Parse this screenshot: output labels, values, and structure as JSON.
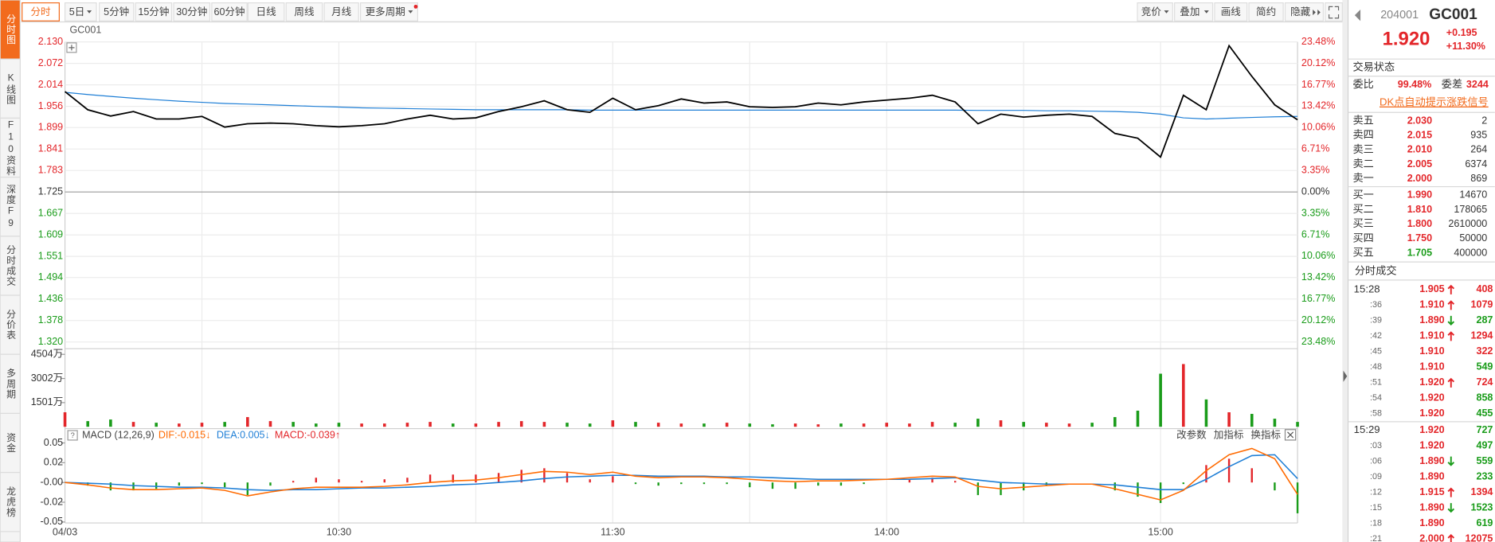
{
  "toolbar": {
    "periods": [
      "分时",
      "5日",
      "5分钟",
      "15分钟",
      "30分钟",
      "60分钟",
      "日线",
      "周线",
      "月线",
      "更多周期"
    ],
    "tools": [
      "竞价",
      "叠加",
      "画线",
      "简约",
      "隐藏"
    ]
  },
  "side_tabs": [
    "分时图",
    "K线图",
    "F10资料",
    "深度F9",
    "分时成交",
    "分价表",
    "多周期",
    "资金",
    "龙虎榜"
  ],
  "chart_data": [
    {
      "type": "line",
      "title": "GC001",
      "categories": [
        "04/03",
        null,
        null,
        null,
        null,
        null,
        null,
        null,
        null,
        null,
        null,
        null,
        "10:30",
        null,
        null,
        null,
        null,
        null,
        null,
        null,
        null,
        null,
        null,
        null,
        "11:30",
        null,
        null,
        null,
        null,
        null,
        null,
        null,
        null,
        null,
        null,
        null,
        "14:00",
        null,
        null,
        null,
        null,
        null,
        null,
        null,
        null,
        null,
        null,
        null,
        "15:00",
        null,
        null,
        null,
        null,
        null,
        null
      ],
      "series": [
        {
          "color": "#000000",
          "values": [
            1.996,
            1.947,
            1.93,
            1.942,
            1.922,
            1.922,
            1.929,
            1.9,
            1.909,
            1.911,
            1.909,
            1.904,
            1.901,
            1.904,
            1.909,
            1.922,
            1.932,
            1.922,
            1.925,
            1.942,
            1.955,
            1.971,
            1.947,
            1.94,
            1.978,
            1.947,
            1.958,
            1.976,
            1.965,
            1.968,
            1.955,
            1.953,
            1.955,
            1.965,
            1.96,
            1.968,
            1.973,
            1.978,
            1.986,
            1.968,
            1.909,
            1.935,
            1.927,
            1.932,
            1.935,
            1.929,
            1.883,
            1.87,
            1.819,
            1.986,
            1.947,
            2.12,
            2.037,
            1.96,
            1.92
          ]
        },
        {
          "color": "#1f7fd6",
          "values": [
            1.994,
            1.988,
            1.983,
            1.978,
            1.974,
            1.97,
            1.967,
            1.964,
            1.962,
            1.96,
            1.958,
            1.956,
            1.954,
            1.952,
            1.951,
            1.95,
            1.949,
            1.948,
            1.947,
            1.947,
            1.947,
            1.947,
            1.947,
            1.946,
            1.946,
            1.946,
            1.946,
            1.946,
            1.946,
            1.946,
            1.946,
            1.946,
            1.946,
            1.946,
            1.946,
            1.946,
            1.946,
            1.946,
            1.946,
            1.946,
            1.945,
            1.945,
            1.945,
            1.944,
            1.944,
            1.943,
            1.942,
            1.94,
            1.935,
            1.925,
            1.922,
            1.924,
            1.926,
            1.928,
            1.929
          ]
        }
      ],
      "ylim": [
        1.32,
        2.13
      ],
      "yticks": [
        {
          "value": 1.32,
          "label": "1.320"
        },
        1.378,
        1.436,
        1.494,
        1.551,
        1.609,
        1.667,
        1.725,
        1.783,
        1.841,
        1.899,
        1.956,
        2.014,
        2.072,
        {
          "value": 2.13,
          "label": "2.130"
        }
      ],
      "y2lim": [
        -23.48,
        23.48
      ],
      "y2ticks": [
        {
          "value": -23.48,
          "label": "23.48%"
        },
        {
          "value": -20.12,
          "label": "20.12%"
        },
        {
          "value": -16.77,
          "label": "16.77%"
        },
        {
          "value": -13.42,
          "label": "13.42%"
        },
        {
          "value": -10.06,
          "label": "10.06%"
        },
        {
          "value": -6.71,
          "label": "6.71%"
        },
        {
          "value": -3.35,
          "label": "3.35%"
        },
        {
          "value": 0,
          "label": "0.00%"
        },
        {
          "value": 3.35,
          "label": "3.35%"
        },
        {
          "value": 6.71,
          "label": "6.71%"
        },
        {
          "value": 10.06,
          "label": "10.06%"
        },
        {
          "value": 13.42,
          "label": "13.42%"
        },
        {
          "value": 16.77,
          "label": "16.77%"
        },
        {
          "value": 20.12,
          "label": "20.12%"
        },
        {
          "value": 23.48,
          "label": "23.48%"
        }
      ],
      "up_color": "#e3262a",
      "down_color": "#1a9c1a",
      "grid": true
    },
    {
      "type": "bar",
      "ylim": [
        0,
        4504
      ],
      "yticks": [
        {
          "value": 1501,
          "label": "1501万"
        },
        {
          "value": 3002,
          "label": "3002万"
        },
        {
          "value": 4504,
          "label": "4504万"
        }
      ],
      "values": [
        900,
        350,
        450,
        300,
        250,
        200,
        250,
        300,
        600,
        350,
        300,
        200,
        250,
        200,
        200,
        250,
        300,
        200,
        200,
        300,
        350,
        300,
        250,
        200,
        400,
        300,
        250,
        200,
        200,
        250,
        200,
        150,
        200,
        150,
        200,
        200,
        250,
        200,
        300,
        250,
        500,
        400,
        300,
        250,
        200,
        250,
        600,
        1000,
        3300,
        3900,
        1700,
        900,
        800,
        500,
        300
      ],
      "up_color": "#e3262a",
      "down_color": "#1a9c1a"
    },
    {
      "type": "macd",
      "label": "MACD (12,26,9)",
      "dif_label": "DIF:-0.015↓",
      "dea_label": "DEA:0.005↓",
      "macd_label": "MACD:-0.039↑",
      "buttons": [
        "改参数",
        "加指标",
        "换指标"
      ],
      "ylim": [
        -0.05,
        0.05
      ],
      "yticks": [
        -0.05,
        {
          "value": -0.025,
          "label": "-0.02"
        },
        {
          "value": 0,
          "label": "-0.00"
        },
        {
          "value": 0.025,
          "label": "0.02"
        },
        0.05
      ],
      "series": [
        {
          "color": "#ff6a00",
          "values": [
            0,
            -0.003,
            -0.007,
            -0.009,
            -0.009,
            -0.008,
            -0.007,
            -0.01,
            -0.017,
            -0.012,
            -0.008,
            -0.006,
            -0.006,
            -0.006,
            -0.005,
            -0.003,
            0,
            0.002,
            0.003,
            0.006,
            0.01,
            0.014,
            0.013,
            0.01,
            0.013,
            0.008,
            0.006,
            0.007,
            0.007,
            0.006,
            0.004,
            0.002,
            0.001,
            0.002,
            0.002,
            0.003,
            0.004,
            0.006,
            0.008,
            0.007,
            -0.005,
            -0.008,
            -0.006,
            -0.004,
            -0.002,
            -0.002,
            -0.008,
            -0.015,
            -0.022,
            -0.01,
            0.015,
            0.035,
            0.043,
            0.03,
            -0.015
          ]
        },
        {
          "color": "#1f7fd6",
          "values": [
            0,
            -0.001,
            -0.002,
            -0.004,
            -0.005,
            -0.006,
            -0.006,
            -0.007,
            -0.009,
            -0.01,
            -0.009,
            -0.009,
            -0.008,
            -0.007,
            -0.007,
            -0.006,
            -0.005,
            -0.003,
            -0.002,
            0,
            0.002,
            0.005,
            0.007,
            0.008,
            0.009,
            0.009,
            0.008,
            0.008,
            0.008,
            0.007,
            0.007,
            0.006,
            0.005,
            0.004,
            0.004,
            0.004,
            0.004,
            0.004,
            0.005,
            0.006,
            0.003,
            0,
            -0.001,
            -0.002,
            -0.002,
            -0.002,
            -0.003,
            -0.006,
            -0.009,
            -0.009,
            0.004,
            0.02,
            0.034,
            0.035,
            0.005
          ]
        }
      ],
      "values": [
        0,
        -0.004,
        -0.01,
        -0.01,
        -0.008,
        -0.004,
        -0.002,
        -0.006,
        -0.016,
        -0.004,
        0.002,
        0.006,
        0.004,
        0.002,
        0.004,
        0.006,
        0.01,
        0.01,
        0.01,
        0.012,
        0.016,
        0.018,
        0.012,
        0.004,
        0.008,
        -0.002,
        -0.004,
        -0.002,
        -0.002,
        -0.002,
        -0.006,
        -0.008,
        -0.008,
        -0.004,
        -0.004,
        -0.002,
        0,
        0.004,
        0.006,
        0.002,
        -0.016,
        -0.016,
        -0.01,
        -0.004,
        0,
        0,
        -0.01,
        -0.018,
        -0.026,
        -0.002,
        0.022,
        0.03,
        0.018,
        -0.01,
        -0.039
      ],
      "up_color": "#e3262a",
      "down_color": "#1a9c1a"
    }
  ],
  "quote": {
    "code": "204001",
    "name": "GC001",
    "last": "1.920",
    "change": "+0.195",
    "change_pct": "+11.30%",
    "status_title": "交易状态",
    "ratio_label": "委比",
    "ratio": "99.48%",
    "diff_label": "委差",
    "diff": "3244",
    "signal_link": "DK点自动提示涨跌信号",
    "asks": [
      [
        "卖五",
        "2.030",
        "2"
      ],
      [
        "卖四",
        "2.015",
        "935"
      ],
      [
        "卖三",
        "2.010",
        "264"
      ],
      [
        "卖二",
        "2.005",
        "6374"
      ],
      [
        "卖一",
        "2.000",
        "869"
      ]
    ],
    "bids": [
      [
        "买一",
        "1.990",
        "14670"
      ],
      [
        "买二",
        "1.810",
        "178065"
      ],
      [
        "买三",
        "1.800",
        "2610000"
      ],
      [
        "买四",
        "1.750",
        "50000"
      ],
      [
        "买五",
        "1.705",
        "400000"
      ]
    ],
    "trades_title": "分时成交",
    "trades": [
      {
        "time": "15:28",
        "price": "1.905",
        "dir": "up",
        "vol": "408",
        "color": "red"
      },
      {
        "time": ":36",
        "price": "1.910",
        "dir": "up",
        "vol": "1079",
        "color": "red"
      },
      {
        "time": ":39",
        "price": "1.890",
        "dir": "down",
        "vol": "287",
        "color": "green"
      },
      {
        "time": ":42",
        "price": "1.910",
        "dir": "up",
        "vol": "1294",
        "color": "red"
      },
      {
        "time": ":45",
        "price": "1.910",
        "dir": null,
        "vol": "322",
        "color": "red"
      },
      {
        "time": ":48",
        "price": "1.910",
        "dir": null,
        "vol": "549",
        "color": "green"
      },
      {
        "time": ":51",
        "price": "1.920",
        "dir": "up",
        "vol": "724",
        "color": "red"
      },
      {
        "time": ":54",
        "price": "1.920",
        "dir": null,
        "vol": "858",
        "color": "green"
      },
      {
        "time": ":58",
        "price": "1.920",
        "dir": null,
        "vol": "455",
        "color": "green"
      },
      {
        "time": "15:29",
        "price": "1.920",
        "dir": null,
        "vol": "727",
        "color": "green"
      },
      {
        "time": ":03",
        "price": "1.920",
        "dir": null,
        "vol": "497",
        "color": "green"
      },
      {
        "time": ":06",
        "price": "1.890",
        "dir": "down",
        "vol": "559",
        "color": "green"
      },
      {
        "time": ":09",
        "price": "1.890",
        "dir": null,
        "vol": "233",
        "color": "green"
      },
      {
        "time": ":12",
        "price": "1.915",
        "dir": "up",
        "vol": "1394",
        "color": "red"
      },
      {
        "time": ":15",
        "price": "1.890",
        "dir": "down",
        "vol": "1523",
        "color": "green"
      },
      {
        "time": ":18",
        "price": "1.890",
        "dir": null,
        "vol": "619",
        "color": "green"
      },
      {
        "time": ":21",
        "price": "2.000",
        "dir": "up",
        "vol": "12075",
        "color": "red"
      }
    ]
  }
}
